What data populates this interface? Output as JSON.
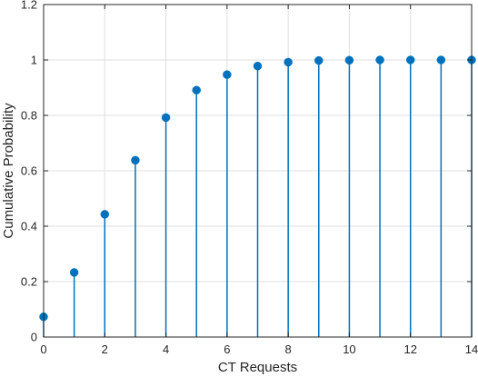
{
  "chart_data": {
    "type": "stem",
    "xlabel": "CT Requests",
    "ylabel": "Cumulative Probability",
    "xlim": [
      0,
      14
    ],
    "ylim": [
      0,
      1.2
    ],
    "xticks": [
      0,
      2,
      4,
      6,
      8,
      10,
      12,
      14
    ],
    "yticks": [
      0,
      0.2,
      0.4,
      0.6,
      0.8,
      1,
      1.2
    ],
    "x": [
      0,
      1,
      2,
      3,
      4,
      5,
      6,
      7,
      8,
      9,
      10,
      11,
      12,
      13,
      14
    ],
    "y": [
      0.073,
      0.233,
      0.443,
      0.638,
      0.792,
      0.891,
      0.947,
      0.978,
      0.992,
      0.998,
      0.999,
      1.0,
      1.0,
      1.0,
      1.0
    ],
    "grid": true,
    "colors": {
      "stem": "#0072BD",
      "grid": "#dfdfdf",
      "axis": "#262626"
    }
  }
}
